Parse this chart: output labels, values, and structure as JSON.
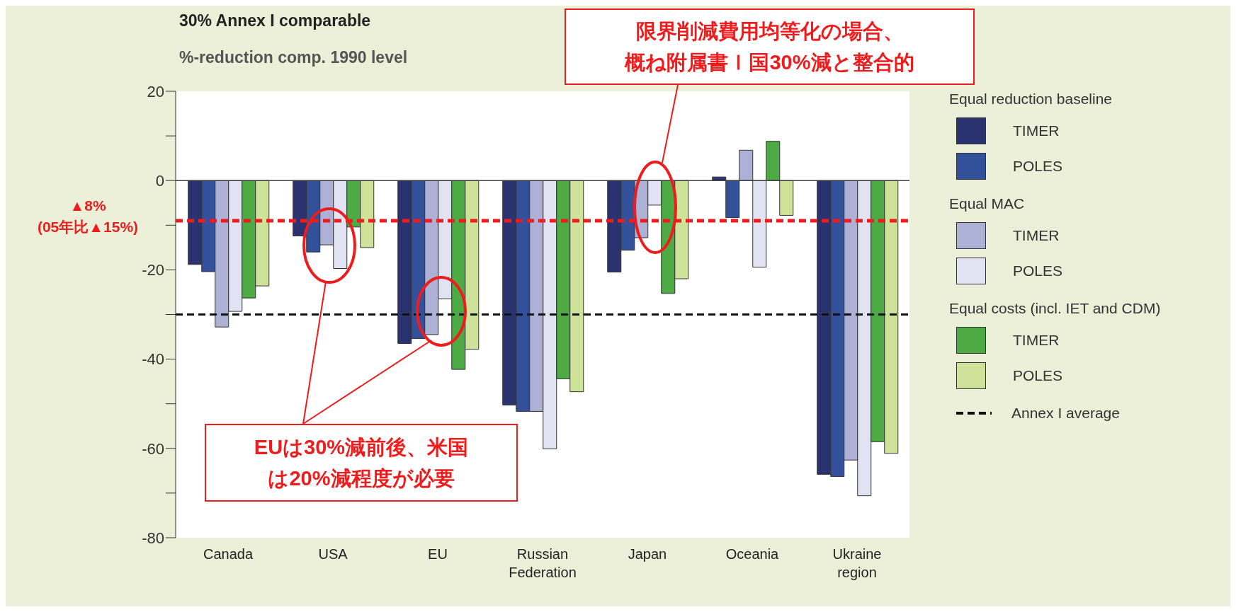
{
  "chart_data": {
    "type": "bar",
    "title": "30% Annex I comparable",
    "subtitle": "%-reduction comp. 1990 level",
    "categories": [
      "Canada",
      "USA",
      "EU",
      "Russian Federation",
      "Japan",
      "Oceania",
      "Ukraine region"
    ],
    "series": [
      {
        "name": "TIMER",
        "color": "#2b3270",
        "values": [
          -18.8,
          -12.4,
          -36.5,
          -50.3,
          -20.5,
          0.8,
          -65.8
        ]
      },
      {
        "name": "POLES",
        "color": "#33509a",
        "values": [
          -20.4,
          -16,
          -35.4,
          -51.7,
          -15.6,
          -8.3,
          -66.3
        ]
      },
      {
        "name": "TIMER",
        "color": "#aeb1d6",
        "values": [
          -32.8,
          -14.4,
          -34.5,
          -51.7,
          -12.8,
          6.8,
          -62.6
        ]
      },
      {
        "name": "POLES",
        "color": "#e2e3f2",
        "values": [
          -29.3,
          -19.7,
          -26.5,
          -60.1,
          -5.5,
          -19.4,
          -70.6
        ]
      },
      {
        "name": "TIMER",
        "color": "#4eaa45",
        "values": [
          -26.3,
          -10.4,
          -42.3,
          -44.4,
          -25.3,
          8.8,
          -58.5
        ]
      },
      {
        "name": "POLES",
        "color": "#cfe29a",
        "values": [
          -23.6,
          -15,
          -37.8,
          -47.3,
          -22,
          -7.8,
          -61.1
        ]
      }
    ],
    "ylim": [
      -80,
      20
    ],
    "yticks": [
      20,
      {
        "value": 10,
        "label": null
      },
      0,
      {
        "value": -10,
        "label": null
      },
      -20,
      {
        "value": -30,
        "label": null
      },
      -40,
      {
        "value": -50,
        "label": null
      },
      -60,
      {
        "value": -70,
        "label": null
      },
      -80
    ],
    "ref_lines": [
      {
        "axis": "y",
        "value": -30,
        "label": "Annex I average",
        "color": "#111111",
        "line_style": "dashed"
      },
      {
        "axis": "y",
        "value": -9,
        "label": "▲8%\n(05年比▲15%)",
        "color": "#ee1c1c",
        "line_style": "dashed"
      }
    ],
    "annotations": [
      "Equal reduction baseline",
      "Equal MAC",
      "Equal costs (incl. IET and CDM)",
      "限界削減費用均等化の場合、概ね附属書Ｉ国30%減と整合的",
      "EUは30%減前後、米国は20%減程度が必要"
    ],
    "legend": "right"
  }
}
